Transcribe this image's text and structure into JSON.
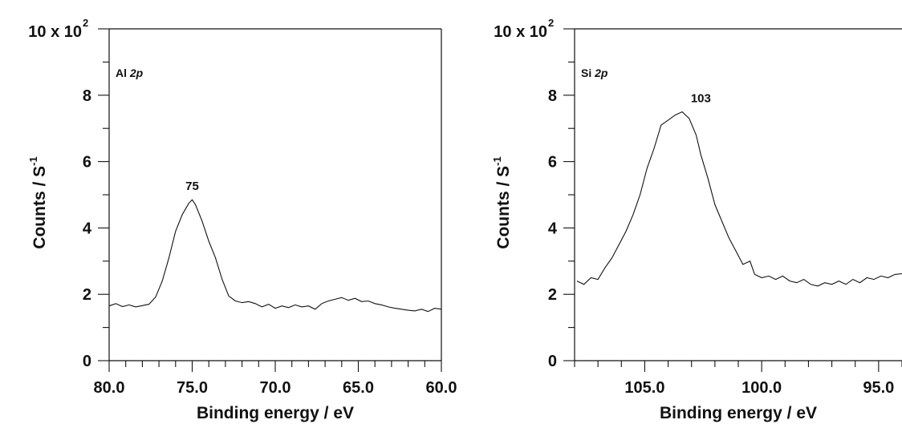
{
  "chart_data": [
    {
      "type": "line",
      "panel_label": "Al",
      "panel_label_italic": "2p",
      "scale_label": "10 x 10",
      "scale_label_exp": "2",
      "xlabel": "Binding energy / eV",
      "ylabel": "Counts / S",
      "ylabel_exp": "-1",
      "xlim": [
        80.0,
        60.0
      ],
      "ylim": [
        0,
        10
      ],
      "x_ticks": [
        "80.0",
        "75.0",
        "70.0",
        "65.0",
        "60.0"
      ],
      "y_ticks": [
        "0",
        "2",
        "4",
        "6",
        "8"
      ],
      "peak_annotation": {
        "text": "75",
        "x": 75.0,
        "y": 4.85
      },
      "x": [
        80.0,
        79.6,
        79.2,
        78.8,
        78.4,
        78.0,
        77.6,
        77.2,
        76.8,
        76.4,
        76.0,
        75.6,
        75.2,
        75.0,
        74.8,
        74.4,
        74.0,
        73.6,
        73.2,
        72.8,
        72.4,
        72.0,
        71.6,
        71.2,
        70.8,
        70.4,
        70.0,
        69.6,
        69.2,
        68.8,
        68.4,
        68.0,
        67.6,
        67.2,
        66.8,
        66.4,
        66.0,
        65.6,
        65.2,
        64.8,
        64.4,
        64.0,
        63.6,
        63.2,
        62.8,
        62.4,
        62.0,
        61.6,
        61.2,
        60.8,
        60.4,
        60.0
      ],
      "values": [
        1.65,
        1.72,
        1.63,
        1.68,
        1.62,
        1.66,
        1.7,
        1.92,
        2.4,
        3.1,
        3.9,
        4.4,
        4.75,
        4.85,
        4.7,
        4.2,
        3.6,
        3.1,
        2.45,
        1.95,
        1.8,
        1.75,
        1.78,
        1.72,
        1.62,
        1.7,
        1.58,
        1.65,
        1.6,
        1.68,
        1.62,
        1.65,
        1.55,
        1.72,
        1.8,
        1.85,
        1.9,
        1.82,
        1.88,
        1.78,
        1.8,
        1.72,
        1.68,
        1.62,
        1.58,
        1.55,
        1.52,
        1.5,
        1.55,
        1.48,
        1.58,
        1.55
      ]
    },
    {
      "type": "line",
      "panel_label": "Si",
      "panel_label_italic": "2p",
      "scale_label": "10 x 10",
      "scale_label_exp": "2",
      "xlabel": "Binding energy / eV",
      "ylabel": "Counts / S",
      "ylabel_exp": "-1",
      "xlim": [
        108.0,
        94.0
      ],
      "ylim": [
        0,
        10
      ],
      "x_ticks": [
        "105.0",
        "100.0",
        "95.0"
      ],
      "x_tick_values": [
        105.0,
        100.0,
        95.0
      ],
      "y_ticks": [
        "0",
        "2",
        "4",
        "6",
        "8"
      ],
      "peak_annotation": {
        "text": "103",
        "x": 102.6,
        "y": 7.5
      },
      "x": [
        107.9,
        107.6,
        107.3,
        107.0,
        106.7,
        106.4,
        106.1,
        105.8,
        105.5,
        105.2,
        104.9,
        104.6,
        104.3,
        104.0,
        103.7,
        103.4,
        103.1,
        102.8,
        102.6,
        102.3,
        102.0,
        101.7,
        101.4,
        101.1,
        100.8,
        100.5,
        100.3,
        100.0,
        99.7,
        99.4,
        99.1,
        98.8,
        98.5,
        98.2,
        97.9,
        97.6,
        97.3,
        97.0,
        96.7,
        96.4,
        96.1,
        95.8,
        95.5,
        95.2,
        94.9,
        94.6,
        94.3,
        94.0
      ],
      "values": [
        2.4,
        2.3,
        2.5,
        2.45,
        2.8,
        3.1,
        3.5,
        3.9,
        4.4,
        5.0,
        5.8,
        6.4,
        7.1,
        7.25,
        7.4,
        7.5,
        7.3,
        6.8,
        6.2,
        5.5,
        4.7,
        4.2,
        3.7,
        3.3,
        2.9,
        3.0,
        2.6,
        2.5,
        2.55,
        2.45,
        2.55,
        2.4,
        2.35,
        2.45,
        2.3,
        2.25,
        2.35,
        2.3,
        2.4,
        2.3,
        2.45,
        2.35,
        2.5,
        2.45,
        2.55,
        2.5,
        2.6,
        2.62
      ]
    }
  ]
}
